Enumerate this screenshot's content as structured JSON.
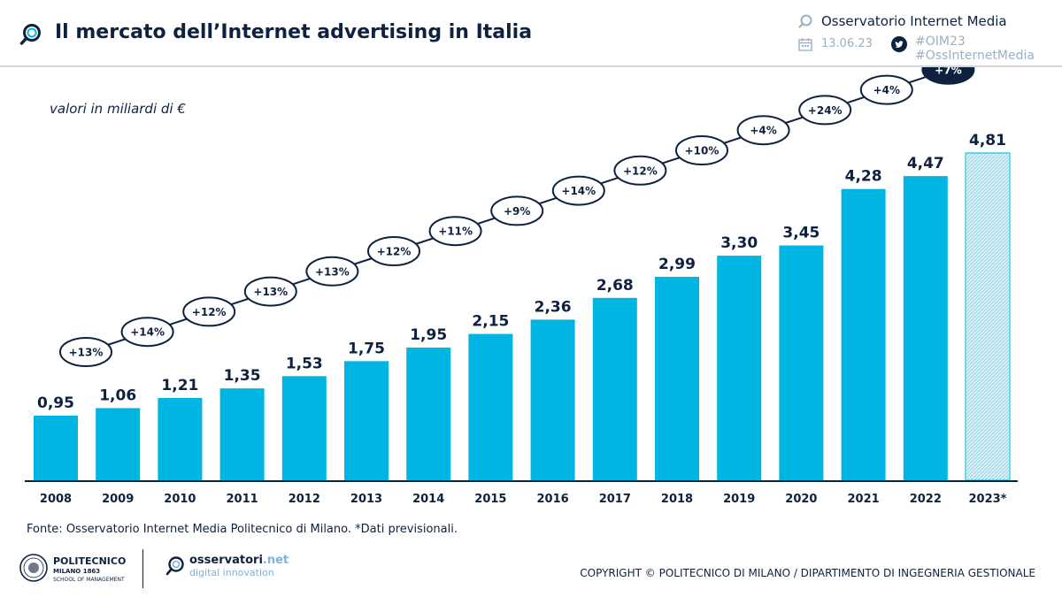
{
  "header": {
    "title": "Il mercato dell’Internet advertising in Italia",
    "brand": "Osservatorio Internet Media",
    "date": "13.06.23",
    "hashtags": [
      "#OIM23",
      "#OssInternetMedia"
    ]
  },
  "unit_label": "valori in miliardi di €",
  "chart_data": {
    "type": "bar",
    "categories": [
      "2008",
      "2009",
      "2010",
      "2011",
      "2012",
      "2013",
      "2014",
      "2015",
      "2016",
      "2017",
      "2018",
      "2019",
      "2020",
      "2021",
      "2022",
      "2023*"
    ],
    "values": [
      0.95,
      1.06,
      1.21,
      1.35,
      1.53,
      1.75,
      1.95,
      2.15,
      2.36,
      2.68,
      2.99,
      3.3,
      3.45,
      4.28,
      4.47,
      4.81
    ],
    "value_labels": [
      "0,95",
      "1,06",
      "1,21",
      "1,35",
      "1,53",
      "1,75",
      "1,95",
      "2,15",
      "2,36",
      "2,68",
      "2,99",
      "3,30",
      "3,45",
      "4,28",
      "4,47",
      "4,81"
    ],
    "forecast_categories": [
      "2023*"
    ],
    "growth_labels": [
      "+13%",
      "+14%",
      "+12%",
      "+13%",
      "+13%",
      "+12%",
      "+11%",
      "+9%",
      "+14%",
      "+12%",
      "+10%",
      "+4%",
      "+24%",
      "+4%",
      "+7%"
    ],
    "highlighted_growth": [
      "+7%"
    ],
    "ylim": [
      0,
      4.9
    ],
    "grid": false,
    "colors": {
      "bar": "#00b5e2",
      "forecast_bar": "#c9eef9",
      "text": "#0e2240",
      "axis": "#0e2240"
    }
  },
  "footer": {
    "source": "Fonte: Osservatorio Internet Media Politecnico di Milano. *Dati previsionali.",
    "polimi_name": "POLITECNICO",
    "polimi_city": "MILANO 1863",
    "polimi_school": "SCHOOL OF MANAGEMENT",
    "oss_name": "osservatori",
    "oss_name_suffix": ".net",
    "oss_sub": "digital innovation",
    "copyright": "COPYRIGHT © POLITECNICO DI MILANO / DIPARTIMENTO DI INGEGNERIA GESTIONALE"
  }
}
